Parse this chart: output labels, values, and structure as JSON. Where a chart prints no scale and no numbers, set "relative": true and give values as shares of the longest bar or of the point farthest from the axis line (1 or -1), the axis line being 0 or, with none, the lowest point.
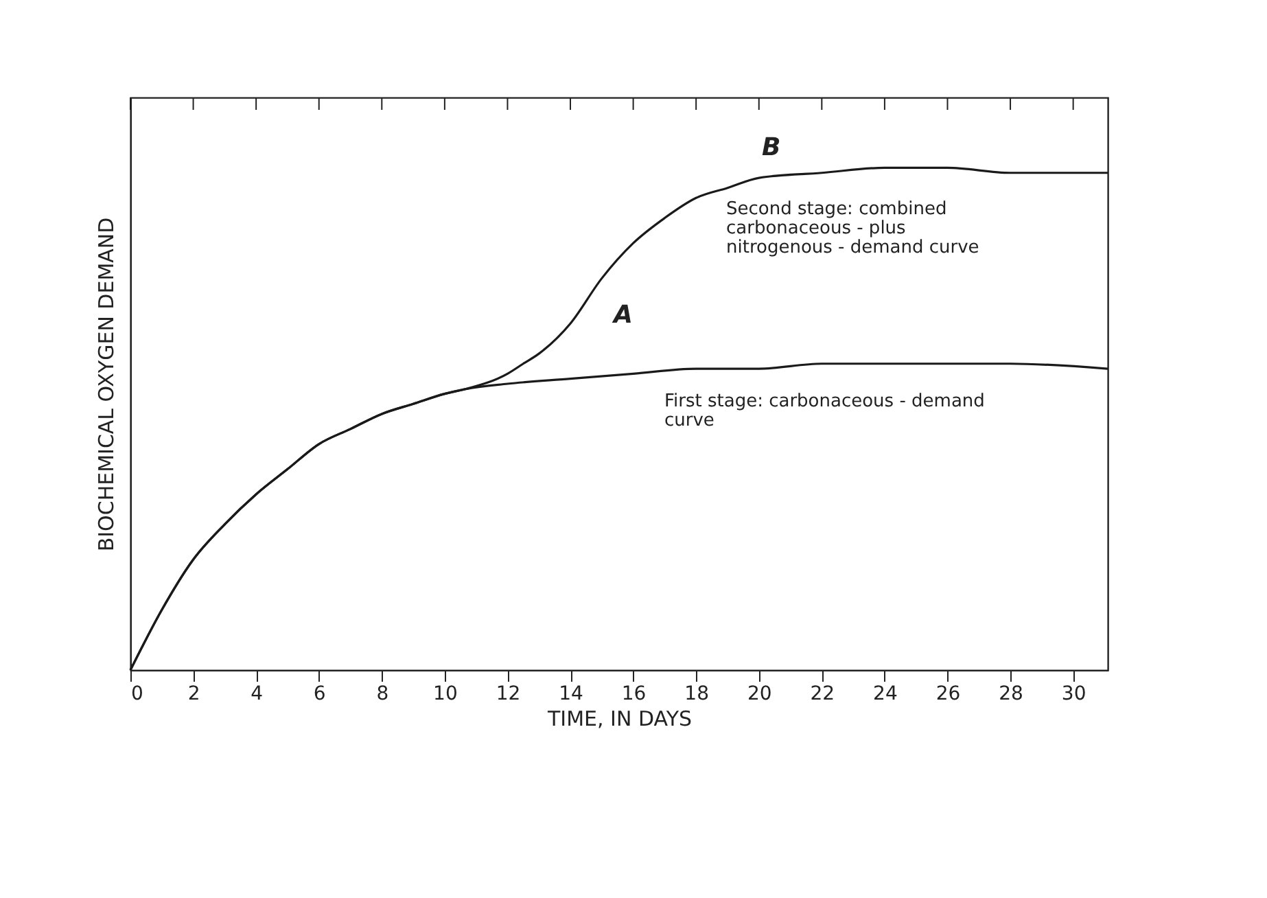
{
  "chart_data": {
    "type": "line",
    "relative": true,
    "xlabel": "TIME, IN DAYS",
    "ylabel": "BIOCHEMICAL OXYGEN DEMAND",
    "xlim": [
      0,
      31.1
    ],
    "xticks": [
      0,
      2,
      4,
      6,
      8,
      10,
      12,
      14,
      16,
      18,
      20,
      22,
      24,
      26,
      28,
      30
    ],
    "grid": false,
    "line_style": "solid",
    "marker": "none",
    "series": [
      {
        "color": "#1a1a1a",
        "x": [
          0,
          1,
          2,
          3,
          4,
          5,
          6,
          7,
          8,
          9,
          10,
          10.7,
          12,
          14,
          16,
          18,
          20,
          22,
          24,
          26,
          28,
          31.1
        ],
        "values": [
          0,
          0.12,
          0.22,
          0.29,
          0.35,
          0.4,
          0.45,
          0.48,
          0.51,
          0.53,
          0.55,
          0.56,
          0.57,
          0.58,
          0.59,
          0.6,
          0.6,
          0.61,
          0.61,
          0.61,
          0.61,
          0.6
        ]
      },
      {
        "color": "#1a1a1a",
        "x": [
          0,
          1,
          2,
          3,
          4,
          5,
          6,
          7,
          8,
          9,
          10,
          10.7,
          12,
          12.5,
          13,
          14,
          15,
          16,
          17,
          18,
          19,
          20,
          22,
          24,
          26,
          28,
          31.1
        ],
        "values": [
          0,
          0.12,
          0.22,
          0.29,
          0.35,
          0.4,
          0.45,
          0.48,
          0.51,
          0.53,
          0.55,
          0.56,
          0.59,
          0.61,
          0.63,
          0.69,
          0.78,
          0.85,
          0.9,
          0.94,
          0.96,
          0.98,
          0.99,
          1,
          1,
          0.99,
          0.99
        ]
      }
    ],
    "annotations": [
      "A",
      "B",
      "Second stage: combined\ncarbonaceous - plus\nnitrogenous - demand curve",
      "First stage: carbonaceous - demand\ncurve"
    ]
  }
}
